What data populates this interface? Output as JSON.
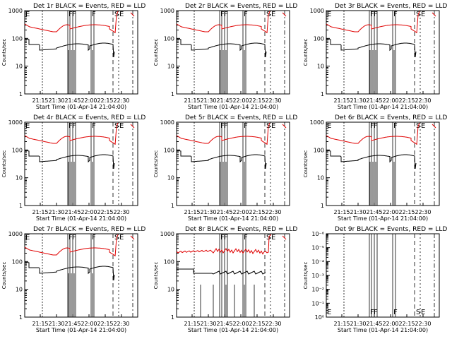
{
  "page": {
    "background": "#ffffff"
  },
  "colors": {
    "events": "#000000",
    "lld": "#e00000",
    "axis": "#000000"
  },
  "chart_data": [
    {
      "type": "line",
      "title": "Det 1r BLACK = Events, RED = LLD",
      "xlabel": "Start Time (01-Apr-14 21:04:00)",
      "ylabel": "Counts/sec",
      "xticks": [
        "21:15",
        "21:30",
        "21:45",
        "22:00",
        "22:15",
        "22:30"
      ],
      "yticks": [
        "1",
        "10",
        "100",
        "1000"
      ],
      "yscale": "log",
      "ylim": [
        1,
        1000
      ],
      "markers": [
        "E",
        "F",
        "F",
        "F",
        "S",
        "E"
      ],
      "series": [
        {
          "name": "BLACK = Events",
          "color": "#000000",
          "shape": "events"
        },
        {
          "name": "RED = LLD",
          "color": "#e00000",
          "shape": "lld"
        }
      ]
    },
    {
      "type": "line",
      "title": "Det 2r BLACK = Events, RED = LLD",
      "xlabel": "Start Time (01-Apr-14 21:04:00)",
      "ylabel": "Counts/sec",
      "xticks": [
        "21:15",
        "21:30",
        "21:45",
        "22:00",
        "22:15",
        "22:30"
      ],
      "yticks": [
        "1",
        "10",
        "100",
        "1000"
      ],
      "yscale": "log",
      "ylim": [
        1,
        1000
      ],
      "markers": [
        "F",
        "F",
        "F",
        "S",
        "E"
      ],
      "series": [
        {
          "name": "BLACK = Events",
          "color": "#000000",
          "shape": "events"
        },
        {
          "name": "RED = LLD",
          "color": "#e00000",
          "shape": "lld"
        }
      ]
    },
    {
      "type": "line",
      "title": "Det 3r BLACK = Events, RED = LLD",
      "xlabel": "Start Time (01-Apr-14 21:04:00)",
      "ylabel": "Counts/sec",
      "xticks": [
        "21:15",
        "21:30",
        "21:45",
        "22:00",
        "22:15",
        "22:30"
      ],
      "yticks": [
        "1",
        "10",
        "100",
        "1000"
      ],
      "yscale": "log",
      "ylim": [
        1,
        1000
      ],
      "markers": [
        "E",
        "F",
        "F",
        "F",
        "S",
        "E"
      ],
      "series": [
        {
          "name": "BLACK = Events",
          "color": "#000000",
          "shape": "events"
        },
        {
          "name": "RED = LLD",
          "color": "#e00000",
          "shape": "lld"
        }
      ]
    },
    {
      "type": "line",
      "title": "Det 4r BLACK = Events, RED = LLD",
      "xlabel": "Start Time (01-Apr-14 21:04:00)",
      "ylabel": "Counts/sec",
      "xticks": [
        "21:15",
        "21:30",
        "21:45",
        "22:00",
        "22:15",
        "22:30"
      ],
      "yticks": [
        "1",
        "10",
        "100",
        "1000"
      ],
      "yscale": "log",
      "ylim": [
        1,
        1000
      ],
      "markers": [
        "E",
        "F",
        "F",
        "F",
        "S",
        "E"
      ],
      "series": [
        {
          "name": "BLACK = Events",
          "color": "#000000",
          "shape": "events"
        },
        {
          "name": "RED = LLD",
          "color": "#e00000",
          "shape": "lld"
        }
      ]
    },
    {
      "type": "line",
      "title": "Det 5r BLACK = Events, RED = LLD",
      "xlabel": "Start Time (01-Apr-14 21:04:00)",
      "ylabel": "Counts/sec",
      "xticks": [
        "21:15",
        "21:30",
        "21:45",
        "22:00",
        "22:15",
        "22:30"
      ],
      "yticks": [
        "1",
        "10",
        "100",
        "1000"
      ],
      "yscale": "log",
      "ylim": [
        1,
        1000
      ],
      "markers": [
        "F",
        "F",
        "F",
        "S",
        "E"
      ],
      "series": [
        {
          "name": "BLACK = Events",
          "color": "#000000",
          "shape": "events"
        },
        {
          "name": "RED = LLD",
          "color": "#e00000",
          "shape": "lld"
        }
      ]
    },
    {
      "type": "line",
      "title": "Det 6r BLACK = Events, RED = LLD",
      "xlabel": "Start Time (01-Apr-14 21:04:00)",
      "ylabel": "Counts/sec",
      "xticks": [
        "21:15",
        "21:30",
        "21:45",
        "22:00",
        "22:15",
        "22:30"
      ],
      "yticks": [
        "1",
        "10",
        "100",
        "1000"
      ],
      "yscale": "log",
      "ylim": [
        1,
        1000
      ],
      "markers": [
        "E",
        "F",
        "F",
        "F",
        "S",
        "E"
      ],
      "series": [
        {
          "name": "BLACK = Events",
          "color": "#000000",
          "shape": "events"
        },
        {
          "name": "RED = LLD",
          "color": "#e00000",
          "shape": "lld"
        }
      ]
    },
    {
      "type": "line",
      "title": "Det 7r BLACK = Events, RED = LLD",
      "xlabel": "Start Time (01-Apr-14 21:04:00)",
      "ylabel": "Counts/sec",
      "xticks": [
        "21:15",
        "21:30",
        "21:45",
        "22:00",
        "22:15",
        "22:30"
      ],
      "yticks": [
        "1",
        "10",
        "100",
        "1000"
      ],
      "yscale": "log",
      "ylim": [
        1,
        1000
      ],
      "markers": [
        "E",
        "F",
        "F",
        "F",
        "S",
        "E"
      ],
      "series": [
        {
          "name": "BLACK = Events",
          "color": "#000000",
          "shape": "events"
        },
        {
          "name": "RED = LLD",
          "color": "#e00000",
          "shape": "lld"
        }
      ]
    },
    {
      "type": "line",
      "title": "Det 8r BLACK = Events, RED = LLD",
      "xlabel": "Start Time (01-Apr-14 21:04:00)",
      "ylabel": "Counts/sec",
      "xticks": [
        "21:15",
        "21:30",
        "21:45",
        "22:00",
        "22:15",
        "22:30"
      ],
      "yticks": [
        "1",
        "10",
        "100",
        "1000"
      ],
      "yscale": "log",
      "ylim": [
        1,
        1000
      ],
      "markers": [
        "F",
        "F",
        "F",
        "S",
        "E"
      ],
      "series": [
        {
          "name": "BLACK = Events",
          "color": "#000000",
          "shape": "events8"
        },
        {
          "name": "RED = LLD",
          "color": "#e00000",
          "shape": "lld8"
        }
      ]
    },
    {
      "type": "line",
      "title": "Det 9r BLACK = Events, RED = LLD",
      "xlabel": "Start Time (01-Apr-14 21:04:00)",
      "ylabel": "Counts/sec",
      "xticks": [
        "21:15",
        "21:30",
        "21:45",
        "22:00",
        "22:15",
        "22:30"
      ],
      "yticks": [
        "10⁰",
        "10⁻¹",
        "10⁻²",
        "10⁻³",
        "10⁻⁴",
        "10⁻⁵",
        "10⁻⁶"
      ],
      "yscale": "log",
      "ylim": [
        1,
        1e-06
      ],
      "markers": [
        "E",
        "F",
        "F",
        "F",
        "S",
        "E"
      ],
      "series": []
    }
  ]
}
